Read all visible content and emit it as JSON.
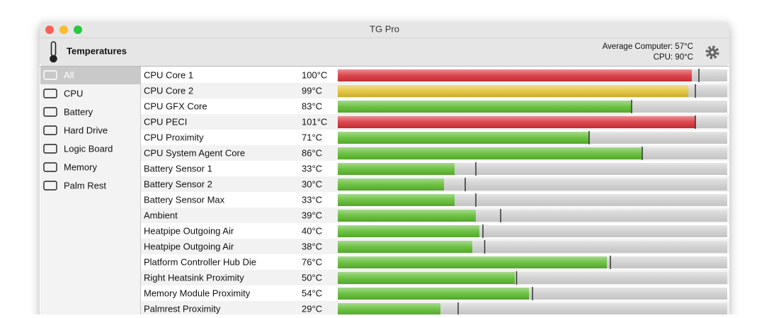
{
  "window": {
    "title": "TG Pro"
  },
  "toolbar": {
    "title": "Temperatures",
    "average": "Average Computer:  57°C",
    "cpu": "CPU:  90°C"
  },
  "sidebar": {
    "items": [
      "All",
      "CPU",
      "Battery",
      "Hard Drive",
      "Logic Board",
      "Memory",
      "Palm Rest"
    ],
    "selected": 0
  },
  "table": {
    "xlim": [
      0,
      110
    ],
    "rows": [
      {
        "name": "CPU Core 1",
        "value": 100,
        "value_label": "100°C",
        "max": 102,
        "color": "#d9323a"
      },
      {
        "name": "CPU Core 2",
        "value": 99,
        "value_label": "99°C",
        "max": 101,
        "color": "#e2c233"
      },
      {
        "name": "CPU GFX Core",
        "value": 83,
        "value_label": "83°C",
        "max": 83,
        "color": "#5dbb2f"
      },
      {
        "name": "CPU PECI",
        "value": 101,
        "value_label": "101°C",
        "max": 101,
        "color": "#d9323a"
      },
      {
        "name": "CPU Proximity",
        "value": 71,
        "value_label": "71°C",
        "max": 71,
        "color": "#5dbb2f"
      },
      {
        "name": "CPU System Agent Core",
        "value": 86,
        "value_label": "86°C",
        "max": 86,
        "color": "#5dbb2f"
      },
      {
        "name": "Battery Sensor 1",
        "value": 33,
        "value_label": "33°C",
        "max": 39,
        "color": "#5dbb2f"
      },
      {
        "name": "Battery Sensor 2",
        "value": 30,
        "value_label": "30°C",
        "max": 36,
        "color": "#5dbb2f"
      },
      {
        "name": "Battery Sensor Max",
        "value": 33,
        "value_label": "33°C",
        "max": 39,
        "color": "#5dbb2f"
      },
      {
        "name": "Ambient",
        "value": 39,
        "value_label": "39°C",
        "max": 46,
        "color": "#5dbb2f"
      },
      {
        "name": "Heatpipe Outgoing Air",
        "value": 40,
        "value_label": "40°C",
        "max": 41,
        "color": "#5dbb2f"
      },
      {
        "name": "Heatpipe Outgoing Air",
        "value": 38,
        "value_label": "38°C",
        "max": 41.5,
        "color": "#5dbb2f"
      },
      {
        "name": "Platform Controller Hub Die",
        "value": 76,
        "value_label": "76°C",
        "max": 77,
        "color": "#5dbb2f"
      },
      {
        "name": "Right Heatsink Proximity",
        "value": 50,
        "value_label": "50°C",
        "max": 50.5,
        "color": "#5dbb2f"
      },
      {
        "name": "Memory Module Proximity",
        "value": 54,
        "value_label": "54°C",
        "max": 55,
        "color": "#5dbb2f"
      },
      {
        "name": "Palmrest Proximity",
        "value": 29,
        "value_label": "29°C",
        "max": 34,
        "color": "#5dbb2f"
      }
    ]
  }
}
